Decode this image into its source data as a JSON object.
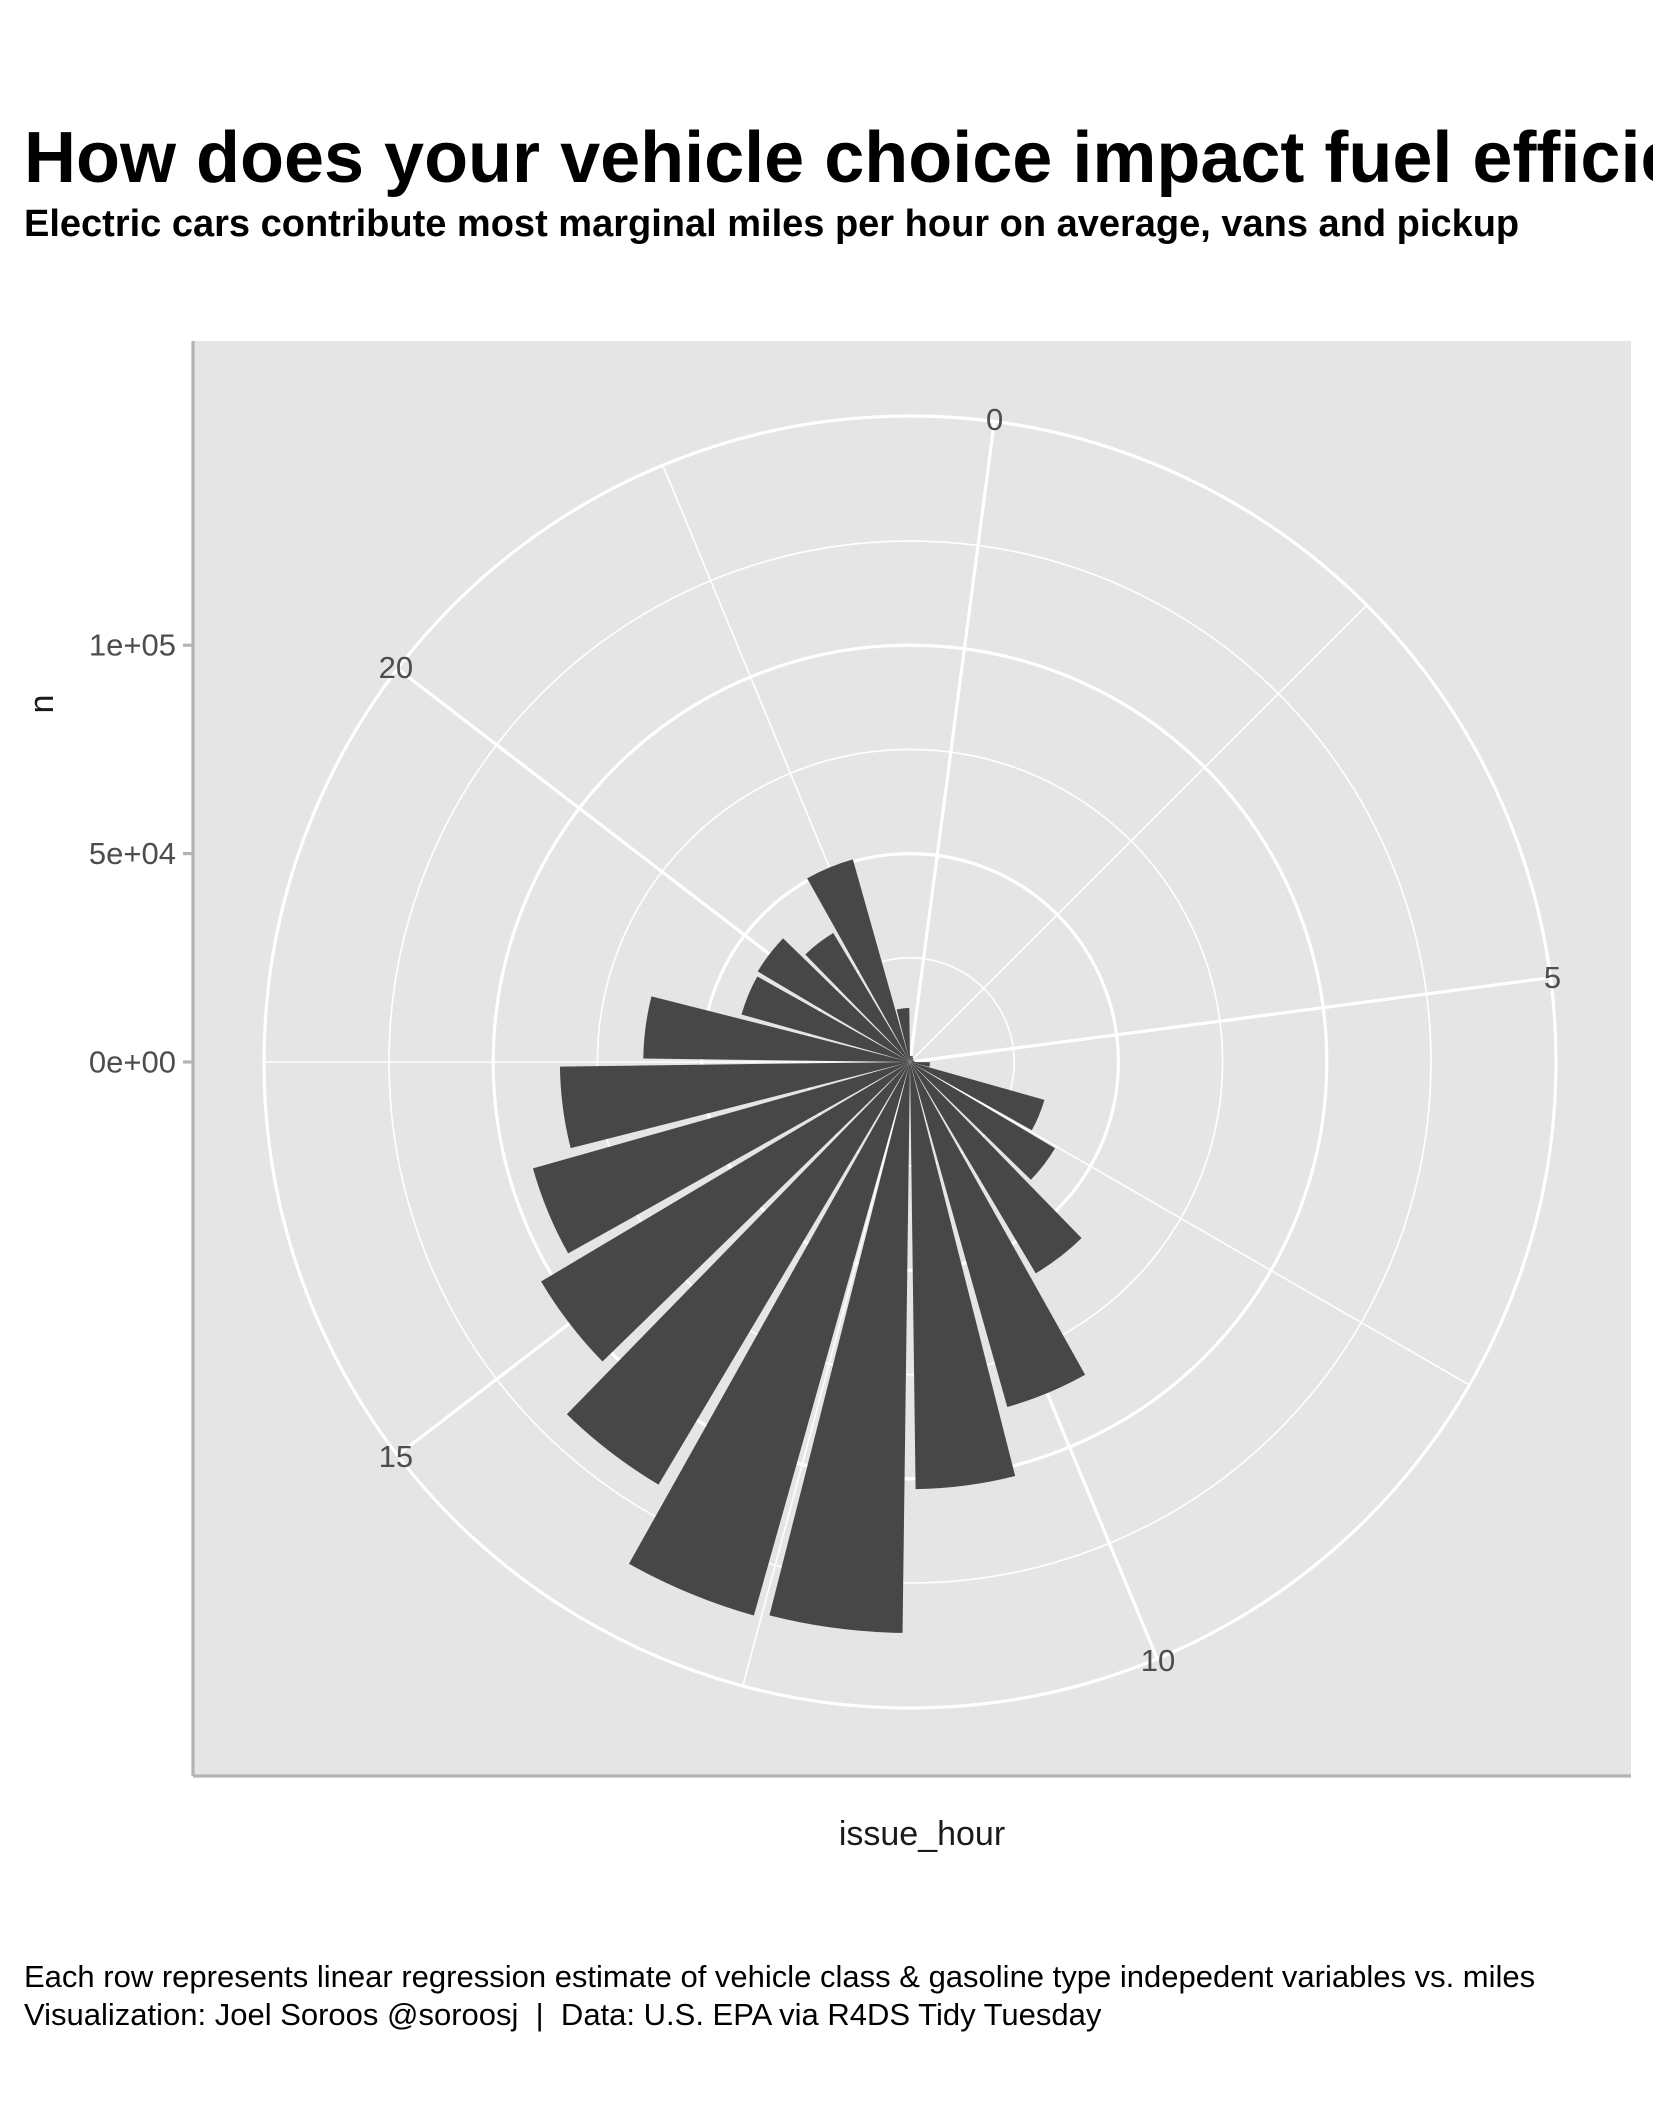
{
  "title": "How does your vehicle choice impact fuel efficie",
  "subtitle": "Electric cars contribute most marginal miles per hour on average, vans and pickup",
  "caption": {
    "line1": "Each row represents linear regression estimate of vehicle class & gasoline type indepedent variables vs. miles",
    "line2": "Visualization: Joel Soroos @soroosj  |  Data: U.S. EPA via R4DS Tidy Tuesday"
  },
  "colors": {
    "panel": "#e5e5e5",
    "bar": "#474747",
    "grid": "#ffffff",
    "axis": "#b3b3b3"
  },
  "chart_data": {
    "type": "bar",
    "coord": "polar",
    "xlabel": "issue_hour",
    "ylabel": "n",
    "x_tick_labels": [
      "0",
      "5",
      "10",
      "15",
      "20"
    ],
    "x_ticks": [
      0,
      5,
      10,
      15,
      20
    ],
    "y_tick_labels": [
      "0e+00",
      "5e+04",
      "1e+05"
    ],
    "y_ticks": [
      0,
      50000,
      100000
    ],
    "ylim": [
      0,
      155000
    ],
    "xlim": [
      -0.5,
      23.5
    ],
    "grid": true,
    "x": [
      0,
      1,
      2,
      3,
      4,
      5,
      6,
      7,
      8,
      9,
      10,
      11,
      12,
      13,
      14,
      15,
      16,
      17,
      18,
      19,
      20,
      21,
      22,
      23
    ],
    "values": [
      1500,
      1500,
      1200,
      1000,
      900,
      1100,
      4800,
      33500,
      40500,
      59000,
      86000,
      102500,
      137000,
      138000,
      118000,
      103000,
      94000,
      84000,
      64000,
      42000,
      42500,
      36000,
      50500,
      13000
    ]
  }
}
